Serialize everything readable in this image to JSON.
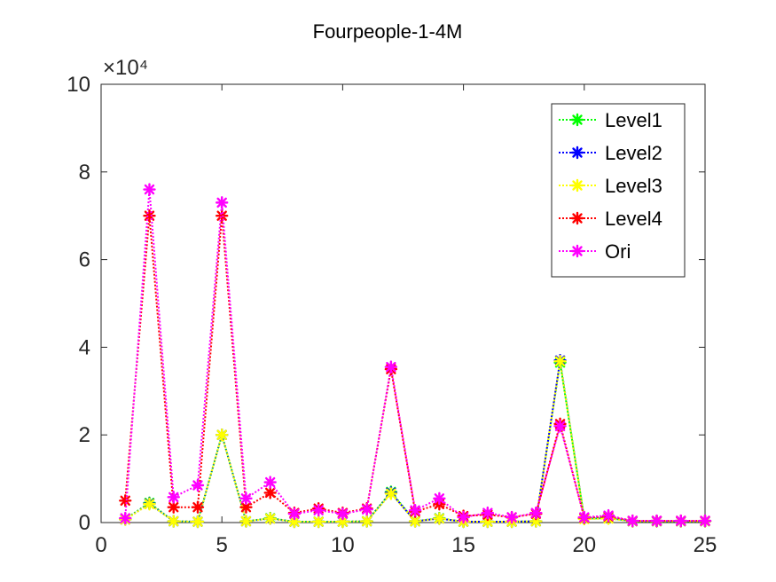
{
  "chart_data": {
    "type": "line",
    "title": "Fourpeople-1-4M",
    "xlabel": "",
    "ylabel": "",
    "y_exponent_label": "×10⁴",
    "y_scale": 10000,
    "xlim": [
      0,
      25
    ],
    "ylim": [
      0,
      100000
    ],
    "xticks": [
      0,
      5,
      10,
      15,
      20,
      25
    ],
    "yticks_display": [
      0,
      2,
      4,
      6,
      8,
      10
    ],
    "grid": false,
    "legend_position": "top-right",
    "x": [
      1,
      2,
      3,
      4,
      5,
      6,
      7,
      8,
      9,
      10,
      11,
      12,
      13,
      14,
      15,
      16,
      17,
      18,
      19,
      20,
      21,
      22,
      23,
      24,
      25
    ],
    "series": [
      {
        "name": "Level1",
        "color": "#00ff00",
        "values": [
          800,
          4500,
          300,
          200,
          20000,
          300,
          1000,
          200,
          200,
          200,
          300,
          7000,
          300,
          1000,
          200,
          200,
          200,
          300,
          36500,
          900,
          1000,
          300,
          300,
          300,
          300
        ]
      },
      {
        "name": "Level2",
        "color": "#0000ff",
        "values": [
          700,
          4300,
          300,
          200,
          20000,
          300,
          900,
          200,
          200,
          200,
          300,
          6800,
          300,
          900,
          200,
          200,
          200,
          300,
          37000,
          900,
          1000,
          300,
          300,
          300,
          300
        ]
      },
      {
        "name": "Level3",
        "color": "#ffff00",
        "values": [
          700,
          4200,
          300,
          200,
          20000,
          300,
          900,
          200,
          200,
          200,
          300,
          6600,
          300,
          900,
          200,
          200,
          200,
          300,
          36800,
          800,
          900,
          300,
          300,
          300,
          300
        ]
      },
      {
        "name": "Level4",
        "color": "#ff0000",
        "values": [
          5000,
          70000,
          3500,
          3500,
          70000,
          3500,
          6800,
          2200,
          3200,
          2200,
          3200,
          35000,
          2500,
          4200,
          1500,
          1800,
          1200,
          2000,
          22500,
          1100,
          1400,
          400,
          400,
          400,
          400
        ]
      },
      {
        "name": "Ori",
        "color": "#ff00ff",
        "values": [
          1000,
          76000,
          5800,
          8500,
          73000,
          5500,
          9200,
          2000,
          2800,
          2000,
          3000,
          35500,
          2800,
          5500,
          1200,
          2200,
          1200,
          2200,
          22000,
          1200,
          1600,
          400,
          400,
          400,
          400
        ]
      }
    ]
  }
}
